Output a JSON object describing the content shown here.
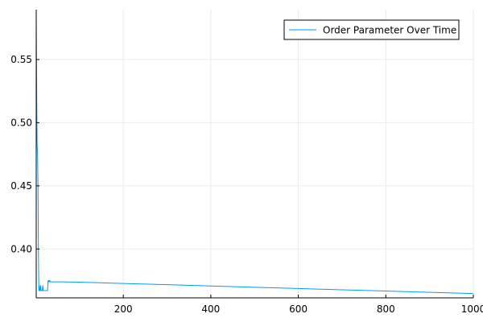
{
  "chart_data": {
    "type": "line",
    "title": "",
    "xlabel": "",
    "ylabel": "",
    "xlim": [
      1,
      1000
    ],
    "ylim": [
      0.3613,
      0.5895
    ],
    "xticks": [
      200,
      400,
      600,
      800,
      1000
    ],
    "xtick_labels": [
      "200",
      "400",
      "600",
      "800",
      "1000"
    ],
    "yticks": [
      0.4,
      0.45,
      0.5,
      0.55
    ],
    "ytick_labels": [
      "0.40",
      "0.45",
      "0.50",
      "0.55"
    ],
    "grid": true,
    "legend_position": "top-right",
    "series": [
      {
        "name": "Order Parameter Over Time",
        "color": "#009af9",
        "x": [
          1,
          2,
          3,
          4,
          5,
          6,
          7,
          8,
          9,
          10,
          11,
          12,
          13,
          14,
          15,
          16,
          17,
          18,
          19,
          20,
          21,
          22,
          23,
          24,
          25,
          26,
          27,
          28,
          29,
          30,
          31,
          32,
          33,
          35,
          40,
          60,
          100,
          200,
          300,
          400,
          500,
          600,
          700,
          800,
          900,
          1000
        ],
        "y": [
          0.585,
          0.525,
          0.483,
          0.475,
          0.452,
          0.398,
          0.367,
          0.371,
          0.367,
          0.367,
          0.371,
          0.367,
          0.367,
          0.367,
          0.367,
          0.371,
          0.367,
          0.367,
          0.367,
          0.367,
          0.367,
          0.367,
          0.367,
          0.367,
          0.367,
          0.367,
          0.367,
          0.375,
          0.374,
          0.375,
          0.374,
          0.375,
          0.374,
          0.374,
          0.374,
          0.374,
          0.3737,
          0.3727,
          0.3717,
          0.3707,
          0.3697,
          0.3687,
          0.3677,
          0.3667,
          0.3657,
          0.3647
        ]
      }
    ]
  }
}
